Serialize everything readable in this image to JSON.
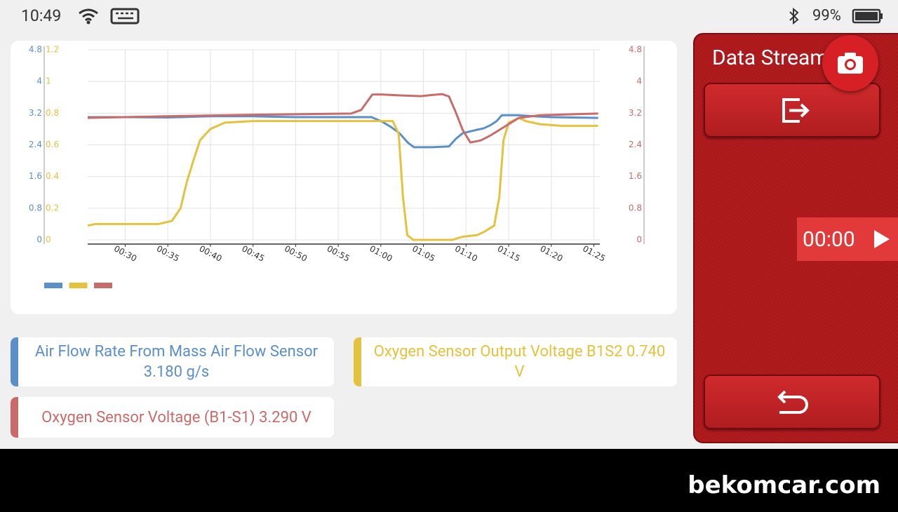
{
  "status_bar": {
    "time": "10:49",
    "battery": "99%"
  },
  "chart_data": {
    "type": "line",
    "xlim": [
      25.6,
      85.7
    ],
    "xticks": [
      {
        "value": 30,
        "label": "00:30"
      },
      {
        "value": 35,
        "label": "00:35"
      },
      {
        "value": 40,
        "label": "00:40"
      },
      {
        "value": 45,
        "label": "00:45"
      },
      {
        "value": 50,
        "label": "00:50"
      },
      {
        "value": 55,
        "label": "00:55"
      },
      {
        "value": 60,
        "label": "01:00"
      },
      {
        "value": 65,
        "label": "01:05"
      },
      {
        "value": 70,
        "label": "01:10"
      },
      {
        "value": 75,
        "label": "01:15"
      },
      {
        "value": 80,
        "label": "01:20"
      },
      {
        "value": 85,
        "label": "01:25"
      }
    ],
    "ylim": [
      0,
      4.8
    ],
    "yticks": [
      0,
      0.8,
      1.6,
      2.4,
      3.2,
      4,
      4.8
    ],
    "y3lim": [
      0,
      1.2
    ],
    "y3ticks": [
      0,
      0.2,
      0.4,
      0.6,
      0.8,
      1,
      1.2
    ],
    "y2lim": [
      0,
      4.8
    ],
    "y2ticks": [
      0,
      0.8,
      1.6,
      2.4,
      3.2,
      4,
      4.8
    ],
    "grid": true,
    "series": [
      {
        "color": "#5b8fc9",
        "axis": "y",
        "x": [
          25.6,
          30,
          35,
          40,
          45,
          50,
          55,
          58.9,
          60.2,
          61.2,
          62.2,
          63.2,
          63.9,
          66,
          68,
          68.8,
          69.6,
          70.5,
          71.3,
          72.1,
          72.9,
          73.6,
          74.2,
          76,
          78,
          80,
          85.5
        ],
        "values": [
          3.1,
          3.1,
          3.09,
          3.12,
          3.12,
          3.1,
          3.1,
          3.1,
          2.98,
          2.85,
          2.69,
          2.45,
          2.34,
          2.34,
          2.36,
          2.55,
          2.69,
          2.74,
          2.78,
          2.82,
          2.9,
          3.0,
          3.15,
          3.15,
          3.12,
          3.1,
          3.08
        ]
      },
      {
        "color": "#e5c23d",
        "axis": "y3",
        "x": [
          25.6,
          26.5,
          30,
          33.9,
          35.5,
          36.5,
          37.2,
          38,
          38.8,
          40,
          41.7,
          45,
          50,
          55,
          61.4,
          62.1,
          62.6,
          63.1,
          63.8,
          68.4,
          69.6,
          71.3,
          72.1,
          73.3,
          73.9,
          74.4,
          75,
          76.2,
          77,
          78.7,
          81.2,
          85.5
        ],
        "values": [
          0.09,
          0.1,
          0.1,
          0.1,
          0.12,
          0.2,
          0.36,
          0.5,
          0.63,
          0.7,
          0.74,
          0.75,
          0.75,
          0.75,
          0.75,
          0.67,
          0.27,
          0.03,
          0,
          0,
          0.02,
          0.03,
          0.05,
          0.09,
          0.27,
          0.63,
          0.74,
          0.77,
          0.75,
          0.73,
          0.72,
          0.72
        ]
      },
      {
        "color": "#c96b6b",
        "axis": "y2",
        "x": [
          25.6,
          35,
          45,
          56.5,
          57.7,
          59,
          60.2,
          62,
          64.7,
          66,
          67.2,
          68,
          68.8,
          69.6,
          70.5,
          71.7,
          72.9,
          74.6,
          76.2,
          78.7,
          85.5
        ],
        "values": [
          3.08,
          3.12,
          3.16,
          3.19,
          3.28,
          3.67,
          3.67,
          3.65,
          3.63,
          3.66,
          3.68,
          3.62,
          3.22,
          2.78,
          2.46,
          2.51,
          2.64,
          2.87,
          3.08,
          3.15,
          3.19
        ]
      }
    ]
  },
  "readings": [
    {
      "label": "Air Flow Rate From Mass Air Flow Sensor 3.180 g/s",
      "color": "#5b8fc9"
    },
    {
      "label": "Oxygen Sensor Output Voltage B1S2 0.740 V",
      "color": "#e5c23d"
    },
    {
      "label": "Oxygen Sensor Voltage (B1-S1) 3.290 V",
      "color": "#c96b6b"
    }
  ],
  "side_panel": {
    "title": "Data Stream",
    "timer": "00:00"
  },
  "watermark": "bekomcar.com"
}
